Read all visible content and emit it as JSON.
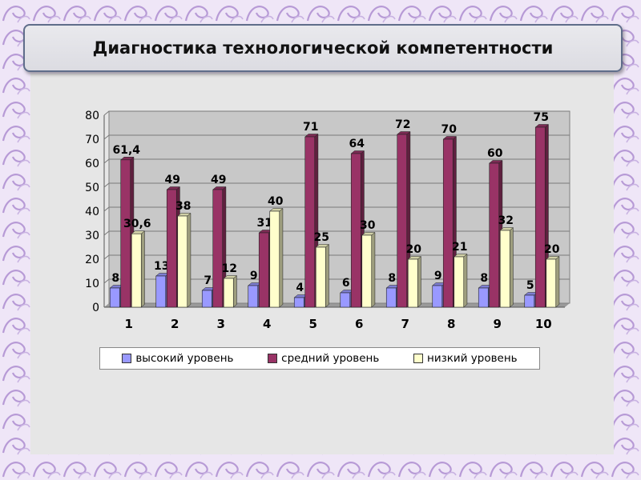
{
  "slide": {
    "title": "Диагностика технологической компетентности"
  },
  "colors": {
    "background": "#ede4f6",
    "panel": "#e6e6e6",
    "plot_area": "#c8c8c8"
  },
  "chart_data": {
    "type": "bar",
    "title": "",
    "xlabel": "",
    "ylabel": "",
    "categories": [
      "1",
      "2",
      "3",
      "4",
      "5",
      "6",
      "7",
      "8",
      "9",
      "10"
    ],
    "series": [
      {
        "name": "высокий уровень",
        "color": "#9999ff",
        "values": [
          8,
          13,
          7,
          9,
          4,
          6,
          8,
          9,
          8,
          5
        ],
        "labels": [
          "8",
          "13",
          "7",
          "9",
          "4",
          "6",
          "8",
          "9",
          "8",
          "5"
        ]
      },
      {
        "name": "средний уровень",
        "color": "#993366",
        "values": [
          61.4,
          49,
          49,
          31,
          71,
          64,
          72,
          70,
          60,
          75
        ],
        "labels": [
          "61,4",
          "49",
          "49",
          "31",
          "71",
          "64",
          "72",
          "70",
          "60",
          "75"
        ]
      },
      {
        "name": "низкий уровень",
        "color": "#ffffcc",
        "values": [
          30.6,
          38,
          12,
          40,
          25,
          30,
          20,
          21,
          32,
          20
        ],
        "labels": [
          "30,6",
          "38",
          "12",
          "40",
          "25",
          "30",
          "20",
          "21",
          "32",
          "20"
        ]
      }
    ],
    "ylim": [
      0,
      80
    ],
    "yticks": [
      0,
      10,
      20,
      30,
      40,
      50,
      60,
      70,
      80
    ],
    "grid": true,
    "legend_position": "bottom"
  }
}
